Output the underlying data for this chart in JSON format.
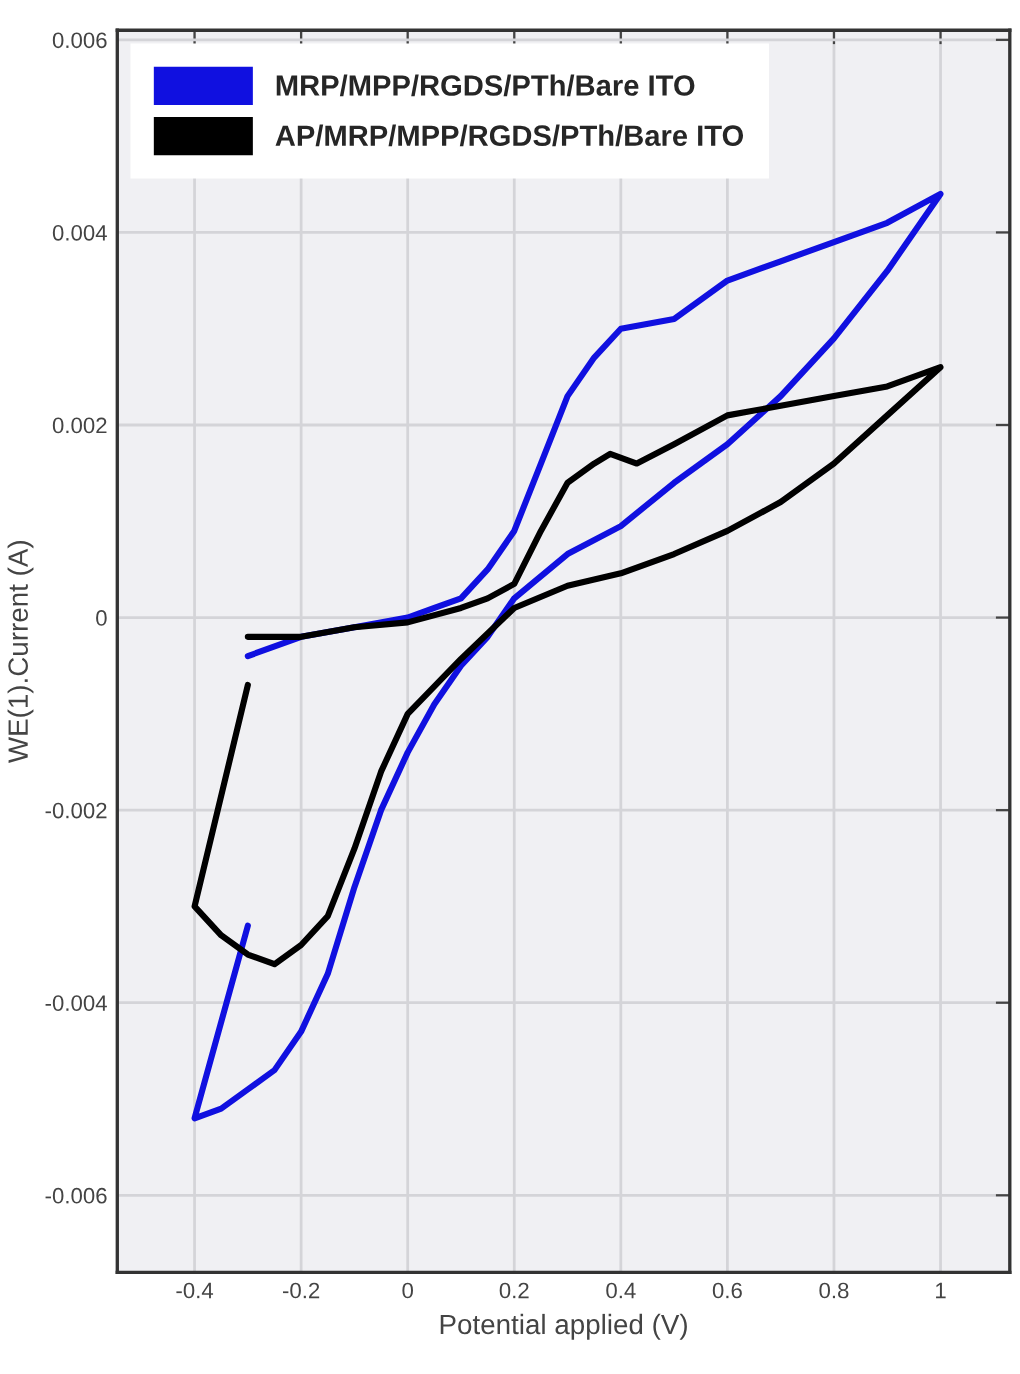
{
  "chart_data": {
    "type": "line",
    "xlabel": "Potential applied (V)",
    "ylabel": "WE(1).Current (A)",
    "xlim": [
      -0.545,
      1.13
    ],
    "ylim": [
      -0.0068,
      0.0061
    ],
    "xticks": [
      {
        "value": -0.4,
        "label": "-0.4"
      },
      {
        "value": -0.2,
        "label": "-0.2"
      },
      0,
      0.2,
      0.4,
      0.6,
      0.8,
      1
    ],
    "yticks": [
      {
        "value": -0.006,
        "label": "-0.006"
      },
      {
        "value": -0.004,
        "label": "-0.004"
      },
      {
        "value": -0.002,
        "label": "-0.002"
      },
      0,
      0.002,
      0.004,
      0.006
    ],
    "grid": true,
    "legend": "top left",
    "marker": "none",
    "line_style": "solid",
    "series": [
      {
        "name": "MRP/MPP/RGDS/PTh/Bare ITO",
        "color": "#1010e0",
        "x": [
          -0.3,
          -0.2,
          -0.1,
          0,
          0.05,
          0.1,
          0.15,
          0.2,
          0.25,
          0.3,
          0.35,
          0.4,
          0.5,
          0.6,
          0.7,
          0.8,
          0.9,
          1.0,
          0.9,
          0.8,
          0.7,
          0.6,
          0.5,
          0.4,
          0.3,
          0.2,
          0.15,
          0.1,
          0.05,
          0,
          -0.05,
          -0.1,
          -0.15,
          -0.2,
          -0.25,
          -0.3,
          -0.35,
          -0.4,
          -0.3
        ],
        "values": [
          -0.0004,
          -0.0002,
          -0.0001,
          0,
          0.0001,
          0.0002,
          0.0005,
          0.0009,
          0.0016,
          0.0023,
          0.0027,
          0.003,
          0.0031,
          0.0035,
          0.0037,
          0.0039,
          0.0041,
          0.0044,
          0.0036,
          0.0029,
          0.0023,
          0.0018,
          0.0014,
          0.00095,
          0.00066,
          0.0002,
          -0.0002,
          -0.0005,
          -0.0009,
          -0.0014,
          -0.002,
          -0.0028,
          -0.0037,
          -0.0043,
          -0.0047,
          -0.0049,
          -0.0051,
          -0.0052,
          -0.0032
        ]
      },
      {
        "name": "AP/MRP/MPP/RGDS/PTh/Bare ITO",
        "color": "#000000",
        "x": [
          -0.3,
          -0.2,
          -0.1,
          0,
          0.1,
          0.15,
          0.2,
          0.25,
          0.3,
          0.35,
          0.38,
          0.43,
          0.5,
          0.6,
          0.7,
          0.8,
          0.9,
          1.0,
          0.9,
          0.8,
          0.7,
          0.6,
          0.5,
          0.4,
          0.3,
          0.2,
          0.1,
          0,
          -0.05,
          -0.1,
          -0.15,
          -0.2,
          -0.25,
          -0.3,
          -0.35,
          -0.4,
          -0.3
        ],
        "values": [
          -0.0002,
          -0.0002,
          -0.0001,
          -5e-05,
          0.0001,
          0.0002,
          0.00035,
          0.0009,
          0.0014,
          0.0016,
          0.0017,
          0.0016,
          0.0018,
          0.0021,
          0.0022,
          0.0023,
          0.0024,
          0.0026,
          0.0021,
          0.0016,
          0.0012,
          0.0009,
          0.00066,
          0.00046,
          0.00033,
          0.0001,
          -0.00043,
          -0.001,
          -0.0016,
          -0.0024,
          -0.0031,
          -0.0034,
          -0.0036,
          -0.0035,
          -0.0033,
          -0.003,
          -0.0007
        ]
      }
    ]
  }
}
